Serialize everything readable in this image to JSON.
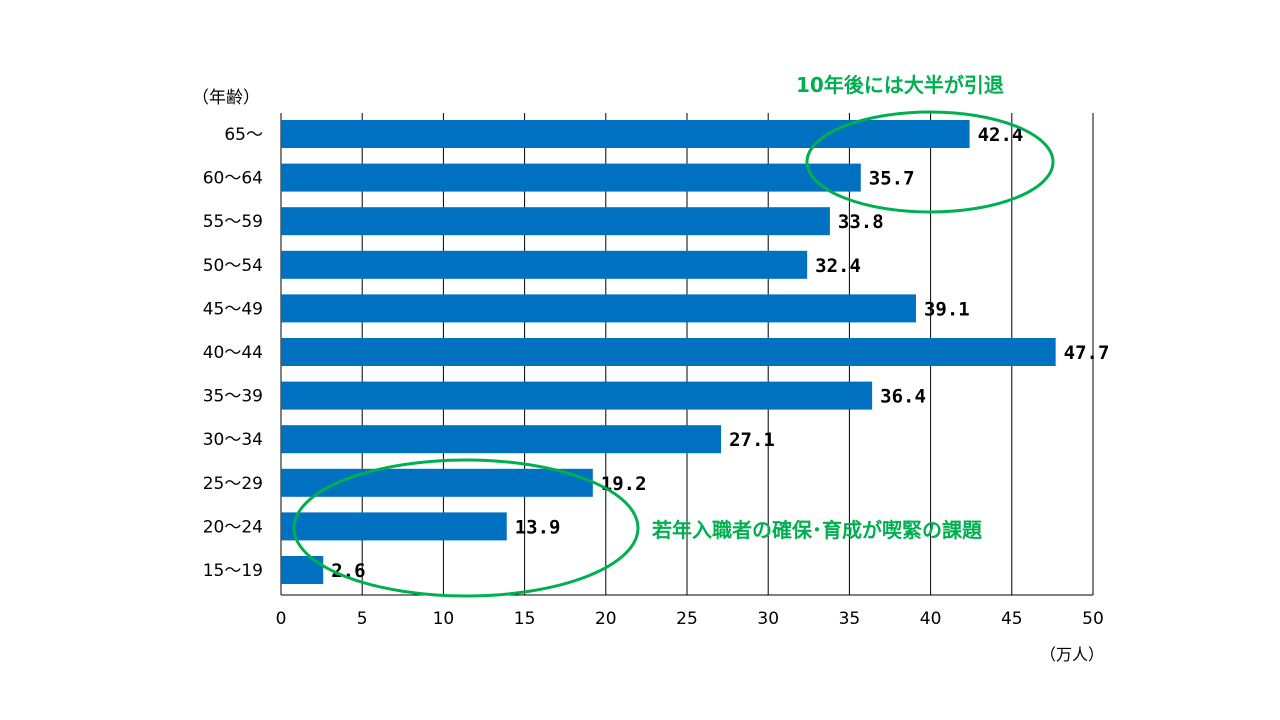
{
  "chart_data": {
    "type": "bar",
    "orientation": "horizontal",
    "ylabel": "（年齢）",
    "xlabel": "（万人）",
    "categories": [
      "65～",
      "60～64",
      "55～59",
      "50～54",
      "45～49",
      "40～44",
      "35～39",
      "30～34",
      "25～29",
      "20～24",
      "15～19"
    ],
    "values": [
      42.4,
      35.7,
      33.8,
      32.4,
      39.1,
      47.7,
      36.4,
      27.1,
      19.2,
      13.9,
      2.6
    ],
    "value_labels": [
      "42.4",
      "35.7",
      "33.8",
      "32.4",
      "39.1",
      "47.7",
      "36.4",
      "27.1",
      "19.2",
      "13.9",
      "2.6"
    ],
    "xlim": [
      0,
      50
    ],
    "xticks": [
      0,
      5,
      10,
      15,
      20,
      25,
      30,
      35,
      40,
      45,
      50
    ],
    "grid": true,
    "bar_color": "#0070C0",
    "annotations": [
      {
        "text": "10年後には大半が引退",
        "color": "#00B050"
      },
      {
        "text": "若年入職者の確保･育成が喫緊の課題",
        "color": "#00B050"
      }
    ]
  }
}
